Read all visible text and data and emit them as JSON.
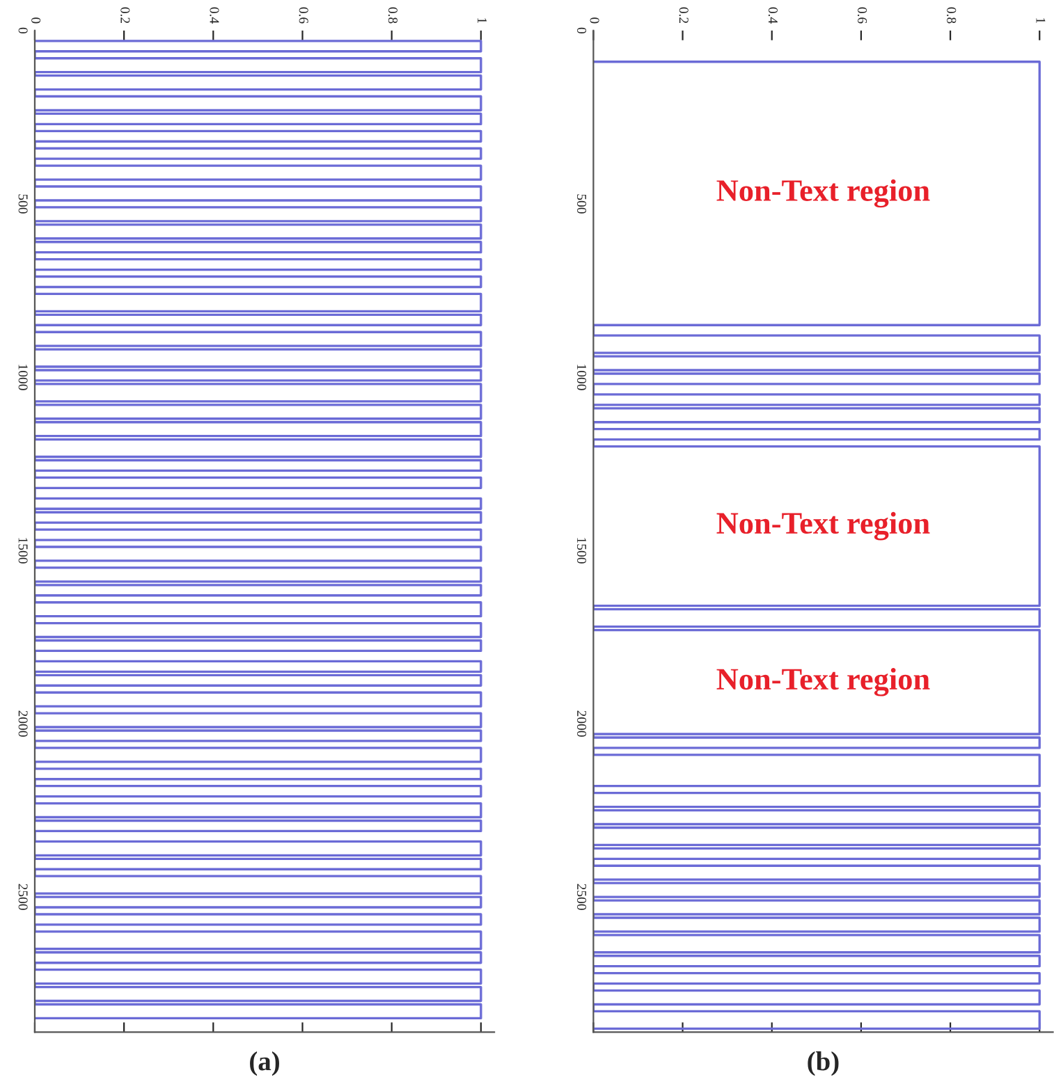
{
  "chart_data": [
    {
      "type": "line",
      "orientation": "horizontal",
      "xlabel": "(a)",
      "xlim": [
        0,
        1.03
      ],
      "xticks": [
        0,
        0.2,
        0.4,
        0.6,
        0.8,
        1
      ],
      "ylim": [
        2890,
        0
      ],
      "yticks": [
        0,
        500,
        1000,
        1500,
        2000,
        2500
      ],
      "series": [
        {
          "color": "#6b6bd6",
          "x": [
            30,
            30,
            60,
            60,
            80,
            80,
            120,
            120,
            130,
            130,
            170,
            170,
            190,
            190,
            230,
            230,
            240,
            240,
            270,
            270,
            290,
            290,
            320,
            320,
            340,
            340,
            370,
            370,
            390,
            390,
            430,
            430,
            450,
            450,
            490,
            490,
            510,
            510,
            550,
            550,
            560,
            560,
            600,
            600,
            610,
            610,
            640,
            640,
            660,
            660,
            690,
            690,
            710,
            710,
            740,
            740,
            760,
            760,
            810,
            810,
            820,
            820,
            850,
            850,
            870,
            870,
            910,
            910,
            920,
            920,
            970,
            970,
            980,
            980,
            1010,
            1010,
            1020,
            1020,
            1070,
            1070,
            1080,
            1080,
            1120,
            1120,
            1130,
            1130,
            1170,
            1170,
            1180,
            1180,
            1230,
            1230,
            1240,
            1240,
            1270,
            1270,
            1290,
            1290,
            1320,
            1320,
            1350,
            1350,
            1380,
            1380,
            1390,
            1390,
            1420,
            1420,
            1440,
            1440,
            1470,
            1470,
            1490,
            1490,
            1530,
            1530,
            1550,
            1550,
            1590,
            1590,
            1600,
            1600,
            1630,
            1630,
            1650,
            1650,
            1690,
            1690,
            1710,
            1710,
            1750,
            1750,
            1760,
            1760,
            1790,
            1790,
            1820,
            1820,
            1850,
            1850,
            1860,
            1860,
            1890,
            1890,
            1910,
            1910,
            1950,
            1950,
            1970,
            1970,
            2010,
            2010,
            2020,
            2020,
            2050,
            2050,
            2070,
            2070,
            2110,
            2110,
            2130,
            2130,
            2160,
            2160,
            2180,
            2180,
            2210,
            2210,
            2230,
            2230,
            2270,
            2270,
            2280,
            2280,
            2310,
            2310,
            2340,
            2340,
            2380,
            2380,
            2390,
            2390,
            2420,
            2420,
            2440,
            2440,
            2490,
            2490,
            2500,
            2500,
            2530,
            2530,
            2550,
            2550,
            2580,
            2580,
            2600,
            2600,
            2650,
            2650,
            2660,
            2660,
            2690,
            2690,
            2710,
            2710,
            2750,
            2750,
            2760,
            2760,
            2800,
            2800,
            2810,
            2810,
            2850,
            2850
          ],
          "values": [
            0,
            1,
            1,
            0,
            0,
            1,
            1,
            0,
            0,
            1,
            1,
            0,
            0,
            1,
            1,
            0,
            0,
            1,
            1,
            0,
            0,
            1,
            1,
            0,
            0,
            1,
            1,
            0,
            0,
            1,
            1,
            0,
            0,
            1,
            1,
            0,
            0,
            1,
            1,
            0,
            0,
            1,
            1,
            0,
            0,
            1,
            1,
            0,
            0,
            1,
            1,
            0,
            0,
            1,
            1,
            0,
            0,
            1,
            1,
            0,
            0,
            1,
            1,
            0,
            0,
            1,
            1,
            0,
            0,
            1,
            1,
            0,
            0,
            1,
            1,
            0,
            0,
            1,
            1,
            0,
            0,
            1,
            1,
            0,
            0,
            1,
            1,
            0,
            0,
            1,
            1,
            0,
            0,
            1,
            1,
            0,
            0,
            1,
            1,
            0,
            0,
            1,
            1,
            0,
            0,
            1,
            1,
            0,
            0,
            1,
            1,
            0,
            0,
            1,
            1,
            0,
            0,
            1,
            1,
            0,
            0,
            1,
            1,
            0,
            0,
            1,
            1,
            0,
            0,
            1,
            1,
            0,
            0,
            1,
            1,
            0,
            0,
            1,
            1,
            0,
            0,
            1,
            1,
            0,
            0,
            1,
            1,
            0,
            0,
            1,
            1,
            0,
            0,
            1,
            1,
            0,
            0,
            1,
            1,
            0,
            0,
            1,
            1,
            0,
            0,
            1,
            1,
            0,
            0,
            1,
            1,
            0,
            0,
            1,
            1,
            0,
            0,
            1,
            1,
            0,
            0,
            1,
            1,
            0,
            0,
            1,
            1,
            0,
            0,
            1,
            1,
            0,
            0,
            1,
            1,
            0,
            0,
            1,
            1,
            0,
            0,
            1,
            1,
            0,
            0,
            1,
            1,
            0,
            0,
            1,
            1,
            0,
            0,
            1,
            1,
            0
          ]
        }
      ]
    },
    {
      "type": "line",
      "orientation": "horizontal",
      "xlabel": "(b)",
      "xlim": [
        0,
        1.03
      ],
      "xticks": [
        0,
        0.2,
        0.4,
        0.6,
        0.8,
        1
      ],
      "ylim": [
        2890,
        0
      ],
      "yticks": [
        0,
        500,
        1000,
        1500,
        2000,
        2500
      ],
      "series": [
        {
          "color": "#6b6bd6",
          "x": [
            90,
            90,
            850,
            850,
            880,
            880,
            930,
            930,
            940,
            940,
            980,
            980,
            990,
            990,
            1020,
            1020,
            1050,
            1050,
            1080,
            1080,
            1090,
            1090,
            1130,
            1130,
            1150,
            1150,
            1180,
            1180,
            1200,
            1200,
            1660,
            1660,
            1670,
            1670,
            1720,
            1720,
            1730,
            1730,
            2030,
            2030,
            2040,
            2040,
            2070,
            2070,
            2090,
            2090,
            2180,
            2180,
            2200,
            2200,
            2240,
            2240,
            2250,
            2250,
            2290,
            2290,
            2300,
            2300,
            2350,
            2350,
            2360,
            2360,
            2390,
            2390,
            2410,
            2410,
            2450,
            2450,
            2460,
            2460,
            2500,
            2500,
            2510,
            2510,
            2550,
            2550,
            2560,
            2560,
            2600,
            2600,
            2610,
            2610,
            2660,
            2660,
            2670,
            2670,
            2700,
            2700,
            2720,
            2720,
            2750,
            2750,
            2770,
            2770,
            2810,
            2810,
            2830,
            2830,
            2880,
            2880
          ],
          "values": [
            0,
            1,
            1,
            0,
            0,
            1,
            1,
            0,
            0,
            1,
            1,
            0,
            0,
            1,
            1,
            0,
            0,
            1,
            1,
            0,
            0,
            1,
            1,
            0,
            0,
            1,
            1,
            0,
            0,
            1,
            1,
            0,
            0,
            1,
            1,
            0,
            0,
            1,
            1,
            0,
            0,
            1,
            1,
            0,
            0,
            1,
            1,
            0,
            0,
            1,
            1,
            0,
            0,
            1,
            1,
            0,
            0,
            1,
            1,
            0,
            0,
            1,
            1,
            0,
            0,
            1,
            1,
            0,
            0,
            1,
            1,
            0,
            0,
            1,
            1,
            0,
            0,
            1,
            1,
            0,
            0,
            1,
            1,
            0,
            0,
            1,
            1,
            0,
            0,
            1,
            1,
            0,
            0,
            1,
            1,
            0,
            0,
            1,
            1,
            0
          ]
        }
      ],
      "annotations": [
        "Non-Text region",
        "Non-Text region",
        "Non-Text region"
      ]
    }
  ]
}
